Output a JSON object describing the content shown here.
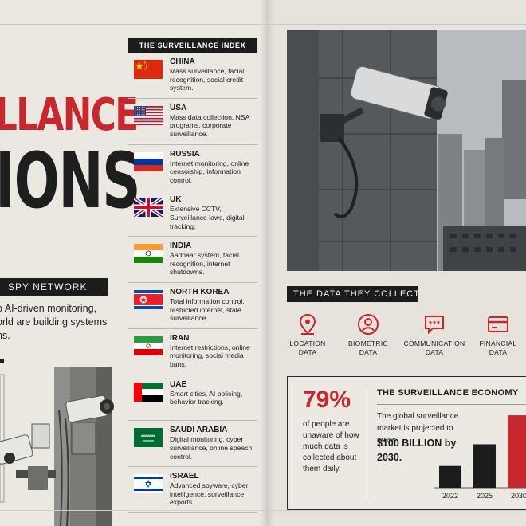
{
  "headline": {
    "line1": "LLANCE",
    "line2": "IONS"
  },
  "spy_tag": "SPY NETWORK",
  "intro": "o AI-driven monitoring, orld are building systems ns.",
  "index": {
    "title": "THE SURVEILLANCE INDEX",
    "countries": [
      {
        "name": "CHINA",
        "desc": "Mass surveillance, facial recognition, social credit system.",
        "flag": "china"
      },
      {
        "name": "USA",
        "desc": "Mass data collection, NSA programs, corporate surveillance.",
        "flag": "usa"
      },
      {
        "name": "RUSSIA",
        "desc": "Internet monitoring, online censorship, information control.",
        "flag": "russia"
      },
      {
        "name": "UK",
        "desc": "Extensive CCTV, Surveillance laws, digital tracking.",
        "flag": "uk"
      },
      {
        "name": "INDIA",
        "desc": "Aadhaar system, facial recognition, internet shutdowns.",
        "flag": "india"
      },
      {
        "name": "NORTH KOREA",
        "desc": "Total information control, restricted internet, state surveillance.",
        "flag": "north-korea"
      },
      {
        "name": "IRAN",
        "desc": "Internet restrictions, online monitoring, social media bans.",
        "flag": "iran"
      },
      {
        "name": "UAE",
        "desc": "Smart cities, AI policing, behavior tracking.",
        "flag": "uae"
      },
      {
        "name": "SAUDI ARABIA",
        "desc": "Digital monitoring, cyber surveillance, online speech control.",
        "flag": "saudi-arabia"
      },
      {
        "name": "ISRAEL",
        "desc": "Advanced spyware, cyber intelligence, surveillance exports.",
        "flag": "israel"
      }
    ]
  },
  "collect": {
    "title": "THE DATA THEY COLLECT",
    "items": [
      {
        "line1": "LOCATION",
        "line2": "DATA",
        "icon": "location-pin-icon"
      },
      {
        "line1": "BIOMETRIC",
        "line2": "DATA",
        "icon": "biometric-face-icon"
      },
      {
        "line1": "COMMUNICATION",
        "line2": "DATA",
        "icon": "chat-bubble-icon"
      },
      {
        "line1": "FINANCIAL",
        "line2": "DATA",
        "icon": "credit-card-icon"
      }
    ]
  },
  "stat": {
    "percent": "79%",
    "desc": "of people are unaware of how much data is collected about them daily."
  },
  "economy": {
    "title": "THE SURVEILLANCE ECONOMY",
    "desc": "The global surveillance market is projected to cross",
    "big": "$100 BILLION by 2030."
  },
  "colors": {
    "accent": "#c8282d",
    "ink": "#1c1c1c",
    "paper": "#ebe8e1"
  },
  "chart_data": {
    "type": "bar",
    "categories": [
      "2022",
      "2025",
      "2030"
    ],
    "values": [
      30,
      60,
      100
    ],
    "ylim": [
      0,
      110
    ],
    "bar_colors": [
      "#1c1c1c",
      "#1c1c1c",
      "#c8282d"
    ]
  }
}
